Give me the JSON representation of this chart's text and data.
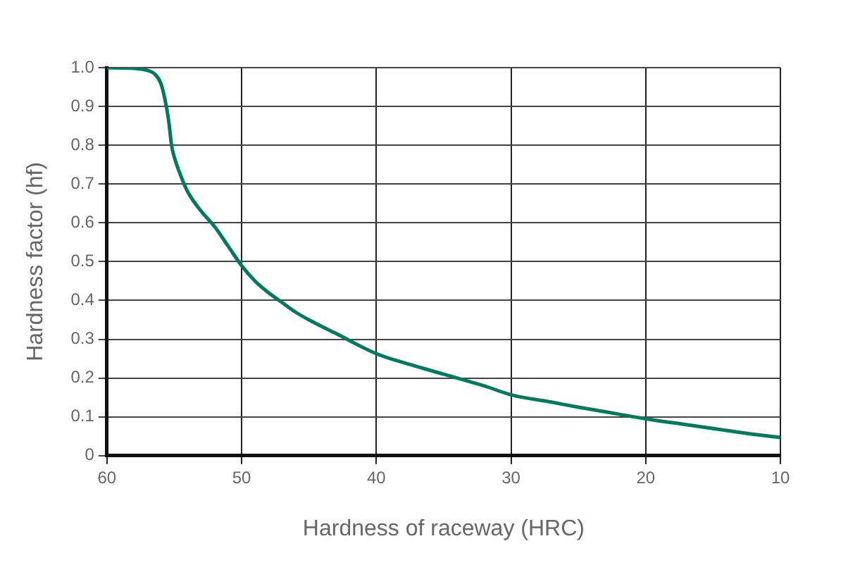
{
  "chart_data": {
    "type": "line",
    "xlabel": "Hardness of raceway (HRC)",
    "ylabel": "Hardness factor (hf)",
    "series": [
      {
        "color": "#007a5e",
        "x": [
          60,
          58,
          57,
          56.5,
          56,
          55.7,
          55.4,
          55.2,
          55,
          54.5,
          54,
          53,
          52,
          51,
          50,
          49,
          48,
          47,
          46,
          45,
          43,
          40,
          37,
          35,
          32,
          30,
          27,
          25,
          22,
          20,
          17,
          15,
          12,
          10
        ],
        "values": [
          1.0,
          0.998,
          0.993,
          0.985,
          0.96,
          0.92,
          0.86,
          0.8,
          0.77,
          0.72,
          0.68,
          0.63,
          0.59,
          0.54,
          0.49,
          0.45,
          0.42,
          0.395,
          0.37,
          0.35,
          0.315,
          0.263,
          0.23,
          0.21,
          0.18,
          0.157,
          0.138,
          0.125,
          0.107,
          0.095,
          0.08,
          0.07,
          0.055,
          0.047
        ]
      }
    ],
    "xlim": [
      60,
      10
    ],
    "xticks": [
      60,
      50,
      40,
      30,
      20,
      10
    ],
    "ylim": [
      0,
      1.0
    ],
    "yticks": [
      {
        "value": 0,
        "label": "0"
      },
      {
        "value": 0.1,
        "label": "0.1"
      },
      {
        "value": 0.2,
        "label": "0.2"
      },
      {
        "value": 0.3,
        "label": "0.3"
      },
      {
        "value": 0.4,
        "label": "0.4"
      },
      {
        "value": 0.5,
        "label": "0.5"
      },
      {
        "value": 0.6,
        "label": "0.6"
      },
      {
        "value": 0.7,
        "label": "0.7"
      },
      {
        "value": 0.8,
        "label": "0.8"
      },
      {
        "value": 0.9,
        "label": "0.9"
      },
      {
        "value": 1.0,
        "label": "1.0"
      }
    ],
    "grid": true,
    "marker": "none",
    "line_style": "solid",
    "legend": false
  }
}
